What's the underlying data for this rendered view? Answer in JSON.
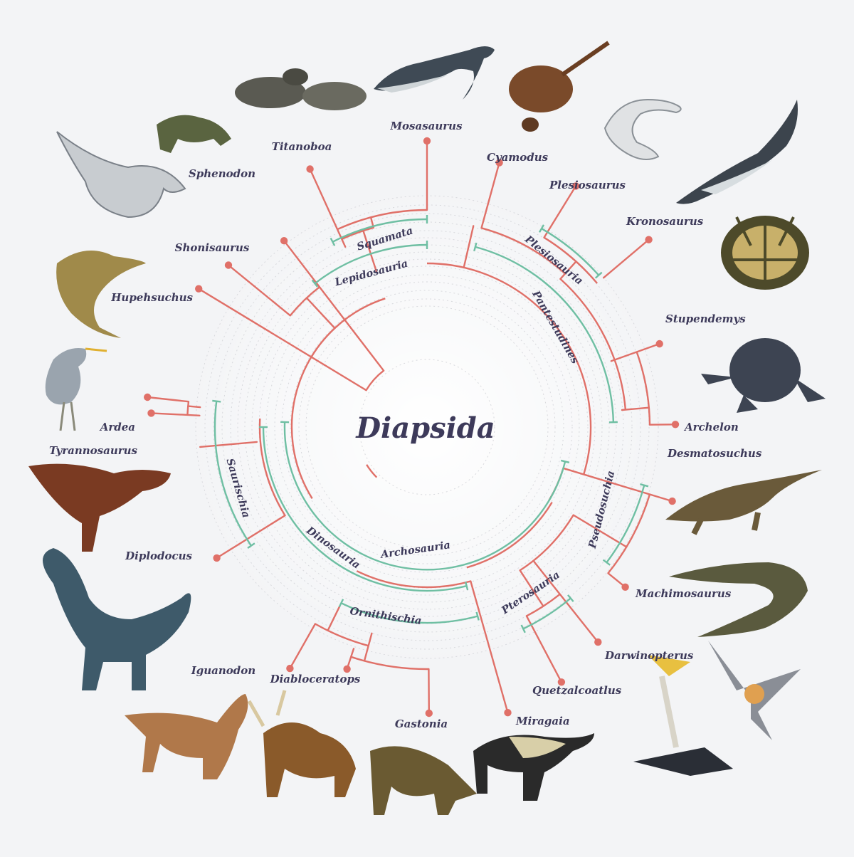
{
  "title": "Diapsida",
  "colors": {
    "background": "#f3f4f6",
    "branch": "#e07068",
    "clade": "#6fbfa3",
    "text": "#3d3a5a",
    "ring": "#d8d9dd"
  },
  "taxa": [
    {
      "id": "mosasaurus",
      "label": "Mosasaurus"
    },
    {
      "id": "cyamodus",
      "label": "Cyamodus"
    },
    {
      "id": "plesiosaurus",
      "label": "Plesiosaurus"
    },
    {
      "id": "kronosaurus",
      "label": "Kronosaurus"
    },
    {
      "id": "stupendemys",
      "label": "Stupendemys"
    },
    {
      "id": "archelon",
      "label": "Archelon"
    },
    {
      "id": "desmatosuchus",
      "label": "Desmatosuchus"
    },
    {
      "id": "machimosaurus",
      "label": "Machimosaurus"
    },
    {
      "id": "darwinopterus",
      "label": "Darwinopterus"
    },
    {
      "id": "quetzalcoatlus",
      "label": "Quetzalcoatlus"
    },
    {
      "id": "miragaia",
      "label": "Miragaia"
    },
    {
      "id": "gastonia",
      "label": "Gastonia"
    },
    {
      "id": "diabloceratops",
      "label": "Diabloceratops"
    },
    {
      "id": "iguanodon",
      "label": "Iguanodon"
    },
    {
      "id": "diplodocus",
      "label": "Diplodocus"
    },
    {
      "id": "tyrannosaurus",
      "label": "Tyrannosaurus"
    },
    {
      "id": "ardea",
      "label": "Ardea"
    },
    {
      "id": "hupehsuchus",
      "label": "Hupehsuchus"
    },
    {
      "id": "shonisaurus",
      "label": "Shonisaurus"
    },
    {
      "id": "sphenodon",
      "label": "Sphenodon"
    },
    {
      "id": "titanoboa",
      "label": "Titanoboa"
    }
  ],
  "clades": [
    {
      "id": "squamata",
      "label": "Squamata"
    },
    {
      "id": "lepidosauria",
      "label": "Lepidosauria"
    },
    {
      "id": "plesiosauria",
      "label": "Plesiosauria"
    },
    {
      "id": "pantestudines",
      "label": "Pantestudines"
    },
    {
      "id": "pseudosuchia",
      "label": "Pseudosuchia"
    },
    {
      "id": "pterosauria",
      "label": "Pterosauria"
    },
    {
      "id": "ornithischia",
      "label": "Ornithischia"
    },
    {
      "id": "dinosauria",
      "label": "Dinosauria"
    },
    {
      "id": "archosauria",
      "label": "Archosauria"
    },
    {
      "id": "saurischia",
      "label": "Saurischia"
    }
  ],
  "animals": [
    {
      "taxon": "mosasaurus",
      "icon": "mosasaurus-icon"
    },
    {
      "taxon": "cyamodus",
      "icon": "cyamodus-icon"
    },
    {
      "taxon": "plesiosaurus",
      "icon": "plesiosaurus-icon"
    },
    {
      "taxon": "kronosaurus",
      "icon": "kronosaurus-icon"
    },
    {
      "taxon": "stupendemys",
      "icon": "stupendemys-icon"
    },
    {
      "taxon": "archelon",
      "icon": "archelon-icon"
    },
    {
      "taxon": "desmatosuchus",
      "icon": "desmatosuchus-icon"
    },
    {
      "taxon": "machimosaurus",
      "icon": "machimosaurus-icon"
    },
    {
      "taxon": "darwinopterus",
      "icon": "darwinopterus-icon"
    },
    {
      "taxon": "quetzalcoatlus",
      "icon": "quetzalcoatlus-icon"
    },
    {
      "taxon": "miragaia",
      "icon": "miragaia-icon"
    },
    {
      "taxon": "gastonia",
      "icon": "gastonia-icon"
    },
    {
      "taxon": "diabloceratops",
      "icon": "diabloceratops-icon"
    },
    {
      "taxon": "iguanodon",
      "icon": "iguanodon-icon"
    },
    {
      "taxon": "diplodocus",
      "icon": "diplodocus-icon"
    },
    {
      "taxon": "tyrannosaurus",
      "icon": "tyrannosaurus-icon"
    },
    {
      "taxon": "ardea",
      "icon": "heron-icon"
    },
    {
      "taxon": "hupehsuchus",
      "icon": "hupehsuchus-icon"
    },
    {
      "taxon": "shonisaurus",
      "icon": "shonisaurus-icon"
    },
    {
      "taxon": "sphenodon",
      "icon": "tuatara-icon"
    },
    {
      "taxon": "titanoboa",
      "icon": "snake-icon"
    }
  ]
}
